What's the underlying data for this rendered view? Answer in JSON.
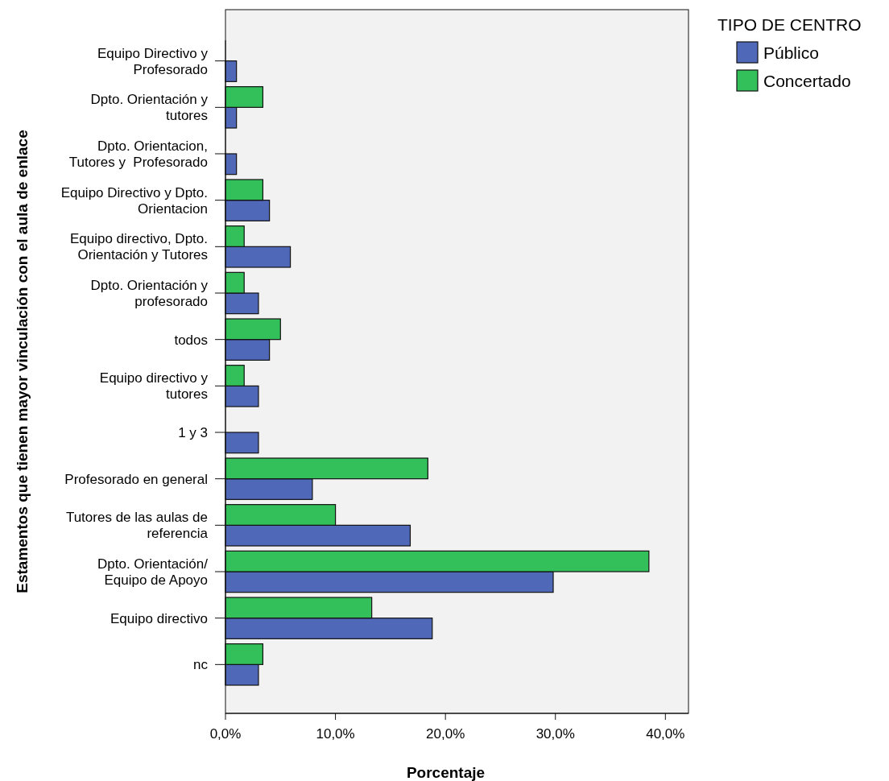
{
  "chart_data": {
    "type": "bar",
    "orientation": "horizontal",
    "ylabel": "Estamentos que tienen mayor vinculación con el aula de enlace",
    "xlabel": "Porcentaje",
    "legend_title": "TIPO DE CENTRO",
    "legend": "top right",
    "categories": [
      "Equipo Directivo y\nProfesorado",
      "Dpto. Orientación y\ntutores",
      "Dpto. Orientacion,\nTutores y  Profesorado",
      "Equipo Directivo y Dpto.\nOrientacion",
      "Equipo directivo, Dpto.\nOrientación y Tutores",
      "Dpto. Orientación y\nprofesorado",
      "todos",
      "Equipo directivo y\ntutores",
      "1 y 3",
      "Profesorado en general",
      "Tutores de las aulas de\nreferencia",
      "Dpto. Orientación/\nEquipo de Apoyo",
      "Equipo directivo",
      "nc"
    ],
    "series": [
      {
        "name": "Público",
        "color": "#5068b8",
        "values": [
          1.0,
          1.0,
          1.0,
          4.0,
          5.9,
          3.0,
          4.0,
          3.0,
          3.0,
          7.9,
          16.8,
          29.8,
          18.8,
          3.0
        ]
      },
      {
        "name": "Concertado",
        "color": "#33c05a",
        "values": [
          0,
          3.4,
          0,
          3.4,
          1.7,
          1.7,
          5.0,
          1.7,
          0,
          18.4,
          10.0,
          38.5,
          13.3,
          3.4
        ]
      }
    ],
    "xlim": [
      0,
      42.1
    ],
    "xticks": [
      {
        "value": 0,
        "label": "0,0%"
      },
      {
        "value": 10,
        "label": "10,0%"
      },
      {
        "value": 20,
        "label": "20,0%"
      },
      {
        "value": 30,
        "label": "30,0%"
      },
      {
        "value": 40,
        "label": "40,0%"
      }
    ]
  }
}
